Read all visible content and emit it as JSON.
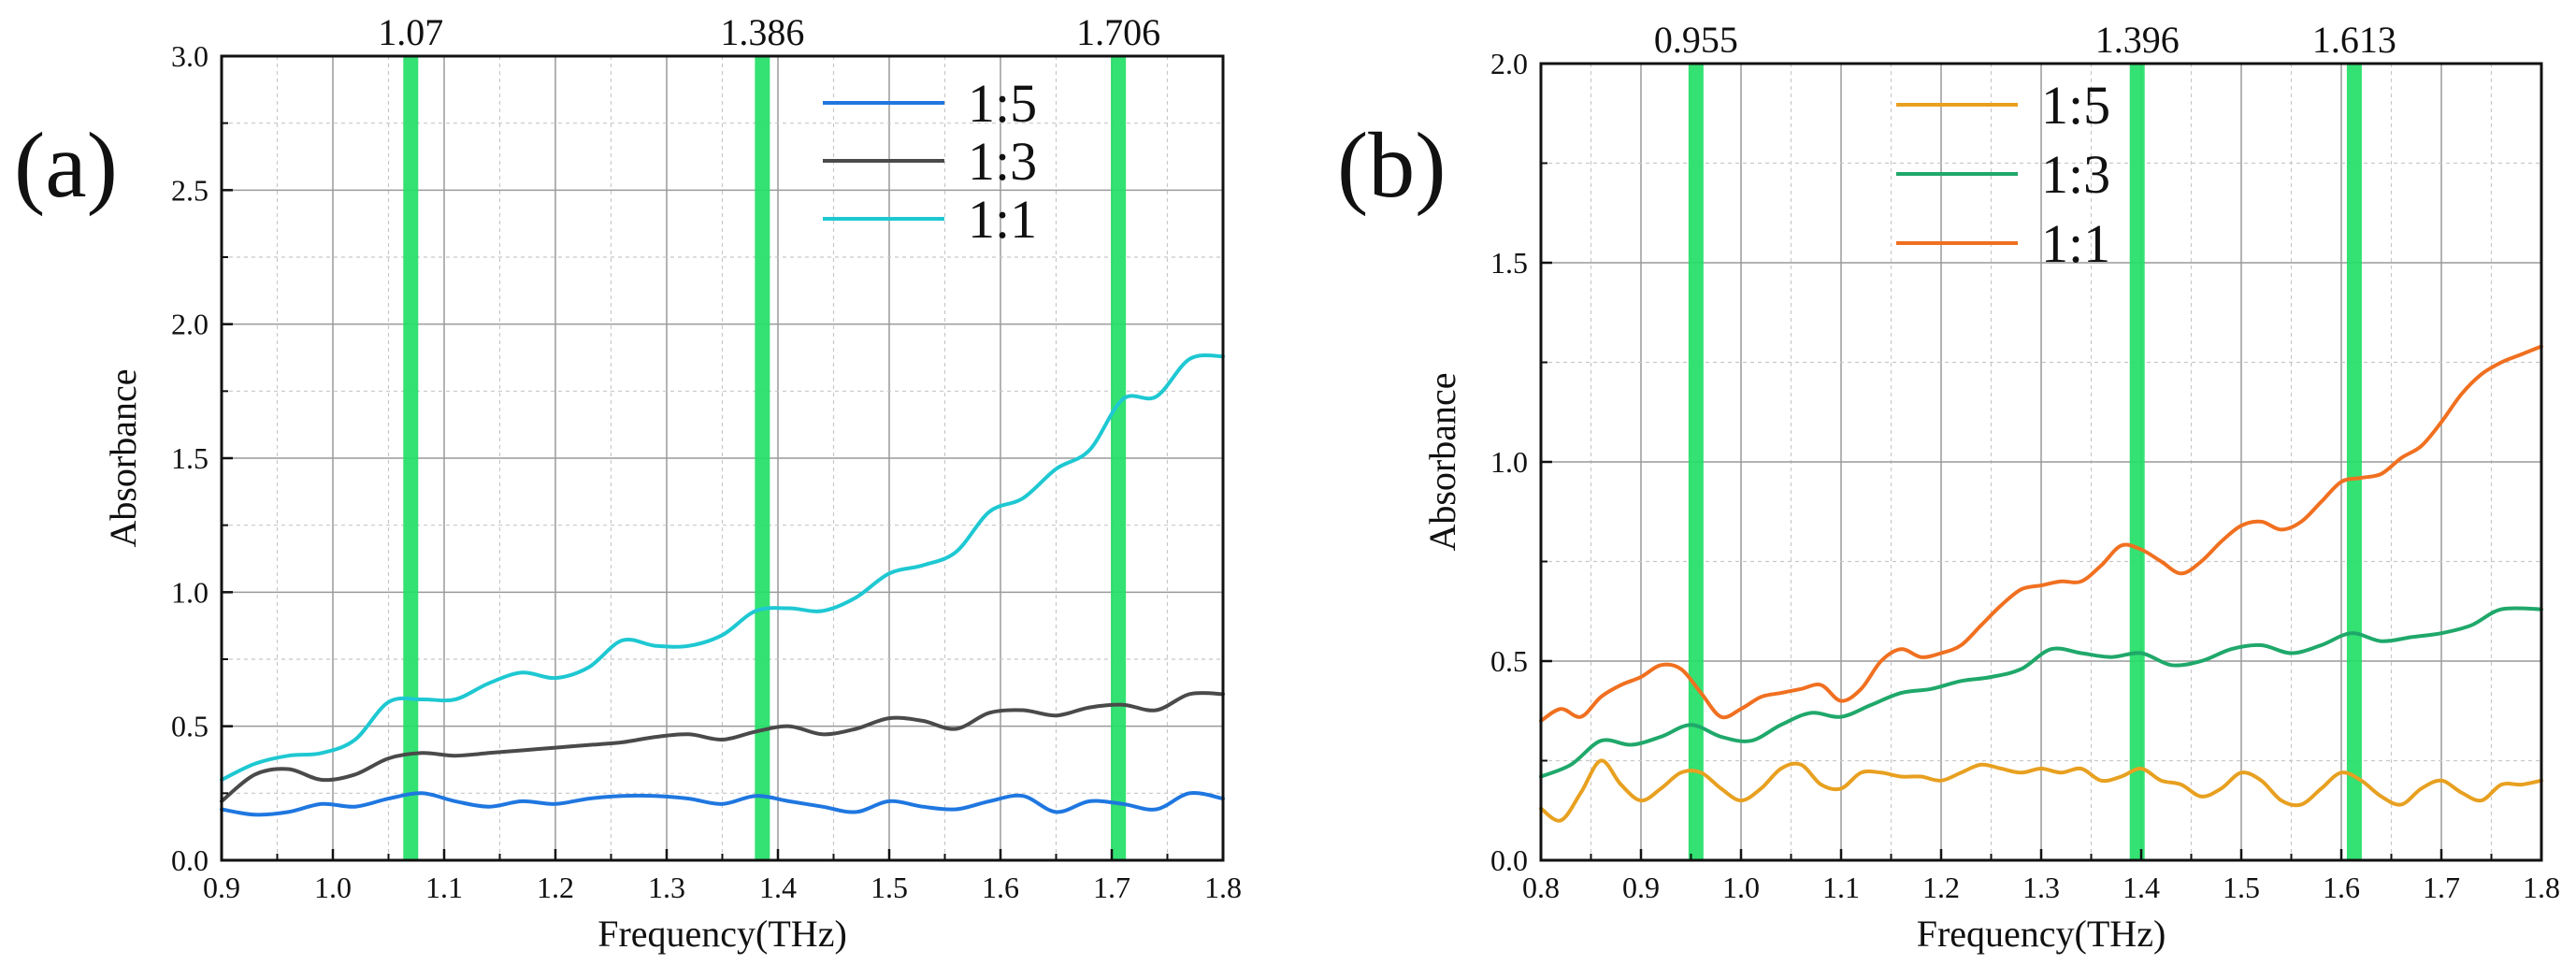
{
  "chart_data": [
    {
      "panel_label": "(a)",
      "type": "line",
      "xlabel": "Frequency(THz)",
      "ylabel": "Absorbance",
      "xlim": [
        0.9,
        1.8
      ],
      "ylim": [
        0.0,
        3.0
      ],
      "xticks": [
        "0.9",
        "1.0",
        "1.1",
        "1.2",
        "1.3",
        "1.4",
        "1.5",
        "1.6",
        "1.7",
        "1.8"
      ],
      "yticks": [
        "0.0",
        "0.5",
        "1.0",
        "1.5",
        "2.0",
        "2.5",
        "3.0"
      ],
      "grid": true,
      "legend_position": "top-right",
      "markers": [
        {
          "value": 1.07,
          "label": "1.07"
        },
        {
          "value": 1.386,
          "label": "1.386"
        },
        {
          "value": 1.706,
          "label": "1.706"
        }
      ],
      "series": [
        {
          "name": "1:5",
          "color": "#1f77e0",
          "x": [
            0.9,
            0.93,
            0.96,
            0.99,
            1.02,
            1.05,
            1.08,
            1.11,
            1.14,
            1.17,
            1.2,
            1.23,
            1.26,
            1.29,
            1.32,
            1.35,
            1.38,
            1.41,
            1.44,
            1.47,
            1.5,
            1.53,
            1.56,
            1.59,
            1.62,
            1.65,
            1.68,
            1.71,
            1.74,
            1.77,
            1.8
          ],
          "y": [
            0.19,
            0.17,
            0.18,
            0.21,
            0.2,
            0.23,
            0.25,
            0.22,
            0.2,
            0.22,
            0.21,
            0.23,
            0.24,
            0.24,
            0.23,
            0.21,
            0.24,
            0.22,
            0.2,
            0.18,
            0.22,
            0.2,
            0.19,
            0.22,
            0.24,
            0.18,
            0.22,
            0.21,
            0.19,
            0.25,
            0.23
          ]
        },
        {
          "name": "1:3",
          "color": "#4a4a4a",
          "x": [
            0.9,
            0.93,
            0.96,
            0.99,
            1.02,
            1.05,
            1.08,
            1.11,
            1.14,
            1.17,
            1.2,
            1.23,
            1.26,
            1.29,
            1.32,
            1.35,
            1.38,
            1.41,
            1.44,
            1.47,
            1.5,
            1.53,
            1.56,
            1.59,
            1.62,
            1.65,
            1.68,
            1.71,
            1.74,
            1.77,
            1.8
          ],
          "y": [
            0.22,
            0.32,
            0.34,
            0.3,
            0.32,
            0.38,
            0.4,
            0.39,
            0.4,
            0.41,
            0.42,
            0.43,
            0.44,
            0.46,
            0.47,
            0.45,
            0.48,
            0.5,
            0.47,
            0.49,
            0.53,
            0.52,
            0.49,
            0.55,
            0.56,
            0.54,
            0.57,
            0.58,
            0.56,
            0.62,
            0.62
          ]
        },
        {
          "name": "1:1",
          "color": "#1ec8d2",
          "x": [
            0.9,
            0.93,
            0.96,
            0.99,
            1.02,
            1.05,
            1.08,
            1.11,
            1.14,
            1.17,
            1.2,
            1.23,
            1.26,
            1.29,
            1.32,
            1.35,
            1.38,
            1.41,
            1.44,
            1.47,
            1.5,
            1.53,
            1.56,
            1.59,
            1.62,
            1.65,
            1.68,
            1.71,
            1.74,
            1.77,
            1.8
          ],
          "y": [
            0.3,
            0.36,
            0.39,
            0.4,
            0.45,
            0.59,
            0.6,
            0.6,
            0.66,
            0.7,
            0.68,
            0.72,
            0.82,
            0.8,
            0.8,
            0.84,
            0.93,
            0.94,
            0.93,
            0.98,
            1.07,
            1.1,
            1.15,
            1.3,
            1.35,
            1.46,
            1.53,
            1.72,
            1.73,
            1.87,
            1.88
          ]
        }
      ]
    },
    {
      "panel_label": "(b)",
      "type": "line",
      "xlabel": "Frequency(THz)",
      "ylabel": "Absorbance",
      "xlim": [
        0.8,
        1.8
      ],
      "ylim": [
        0.0,
        2.0
      ],
      "xticks": [
        "0.8",
        "0.9",
        "1.0",
        "1.1",
        "1.2",
        "1.3",
        "1.4",
        "1.5",
        "1.6",
        "1.7",
        "1.8"
      ],
      "yticks": [
        "0.0",
        "0.5",
        "1.0",
        "1.5",
        "2.0"
      ],
      "grid": true,
      "legend_position": "top-center",
      "markers": [
        {
          "value": 0.955,
          "label": "0.955"
        },
        {
          "value": 1.396,
          "label": "1.396"
        },
        {
          "value": 1.613,
          "label": "1.613"
        }
      ],
      "series": [
        {
          "name": "1:5",
          "color": "#e8a020",
          "x": [
            0.8,
            0.82,
            0.84,
            0.86,
            0.88,
            0.9,
            0.92,
            0.94,
            0.96,
            0.98,
            1.0,
            1.02,
            1.04,
            1.06,
            1.08,
            1.1,
            1.12,
            1.14,
            1.16,
            1.18,
            1.2,
            1.22,
            1.24,
            1.26,
            1.28,
            1.3,
            1.32,
            1.34,
            1.36,
            1.38,
            1.4,
            1.42,
            1.44,
            1.46,
            1.48,
            1.5,
            1.52,
            1.54,
            1.56,
            1.58,
            1.6,
            1.62,
            1.64,
            1.66,
            1.68,
            1.7,
            1.72,
            1.74,
            1.76,
            1.78,
            1.8
          ],
          "y": [
            0.13,
            0.1,
            0.17,
            0.25,
            0.19,
            0.15,
            0.18,
            0.22,
            0.22,
            0.18,
            0.15,
            0.18,
            0.23,
            0.24,
            0.19,
            0.18,
            0.22,
            0.22,
            0.21,
            0.21,
            0.2,
            0.22,
            0.24,
            0.23,
            0.22,
            0.23,
            0.22,
            0.23,
            0.2,
            0.21,
            0.23,
            0.2,
            0.19,
            0.16,
            0.18,
            0.22,
            0.2,
            0.15,
            0.14,
            0.18,
            0.22,
            0.2,
            0.16,
            0.14,
            0.18,
            0.2,
            0.17,
            0.15,
            0.19,
            0.19,
            0.2
          ]
        },
        {
          "name": "1:3",
          "color": "#1fa86a",
          "x": [
            0.8,
            0.83,
            0.86,
            0.89,
            0.92,
            0.95,
            0.98,
            1.01,
            1.04,
            1.07,
            1.1,
            1.13,
            1.16,
            1.19,
            1.22,
            1.25,
            1.28,
            1.31,
            1.34,
            1.37,
            1.4,
            1.43,
            1.46,
            1.49,
            1.52,
            1.55,
            1.58,
            1.61,
            1.64,
            1.67,
            1.7,
            1.73,
            1.76,
            1.8
          ],
          "y": [
            0.21,
            0.24,
            0.3,
            0.29,
            0.31,
            0.34,
            0.31,
            0.3,
            0.34,
            0.37,
            0.36,
            0.39,
            0.42,
            0.43,
            0.45,
            0.46,
            0.48,
            0.53,
            0.52,
            0.51,
            0.52,
            0.49,
            0.5,
            0.53,
            0.54,
            0.52,
            0.54,
            0.57,
            0.55,
            0.56,
            0.57,
            0.59,
            0.63,
            0.63
          ]
        },
        {
          "name": "1:1",
          "color": "#f07020",
          "x": [
            0.8,
            0.82,
            0.84,
            0.86,
            0.88,
            0.9,
            0.92,
            0.94,
            0.96,
            0.98,
            1.0,
            1.02,
            1.04,
            1.06,
            1.08,
            1.1,
            1.12,
            1.14,
            1.16,
            1.18,
            1.2,
            1.22,
            1.24,
            1.26,
            1.28,
            1.3,
            1.32,
            1.34,
            1.36,
            1.38,
            1.4,
            1.42,
            1.44,
            1.46,
            1.48,
            1.5,
            1.52,
            1.54,
            1.56,
            1.58,
            1.6,
            1.62,
            1.64,
            1.66,
            1.68,
            1.7,
            1.72,
            1.74,
            1.76,
            1.78,
            1.8
          ],
          "y": [
            0.35,
            0.38,
            0.36,
            0.41,
            0.44,
            0.46,
            0.49,
            0.48,
            0.42,
            0.36,
            0.38,
            0.41,
            0.42,
            0.43,
            0.44,
            0.4,
            0.43,
            0.5,
            0.53,
            0.51,
            0.52,
            0.54,
            0.59,
            0.64,
            0.68,
            0.69,
            0.7,
            0.7,
            0.74,
            0.79,
            0.78,
            0.75,
            0.72,
            0.75,
            0.8,
            0.84,
            0.85,
            0.83,
            0.85,
            0.9,
            0.95,
            0.96,
            0.97,
            1.01,
            1.04,
            1.1,
            1.17,
            1.22,
            1.25,
            1.27,
            1.29
          ]
        }
      ]
    }
  ]
}
